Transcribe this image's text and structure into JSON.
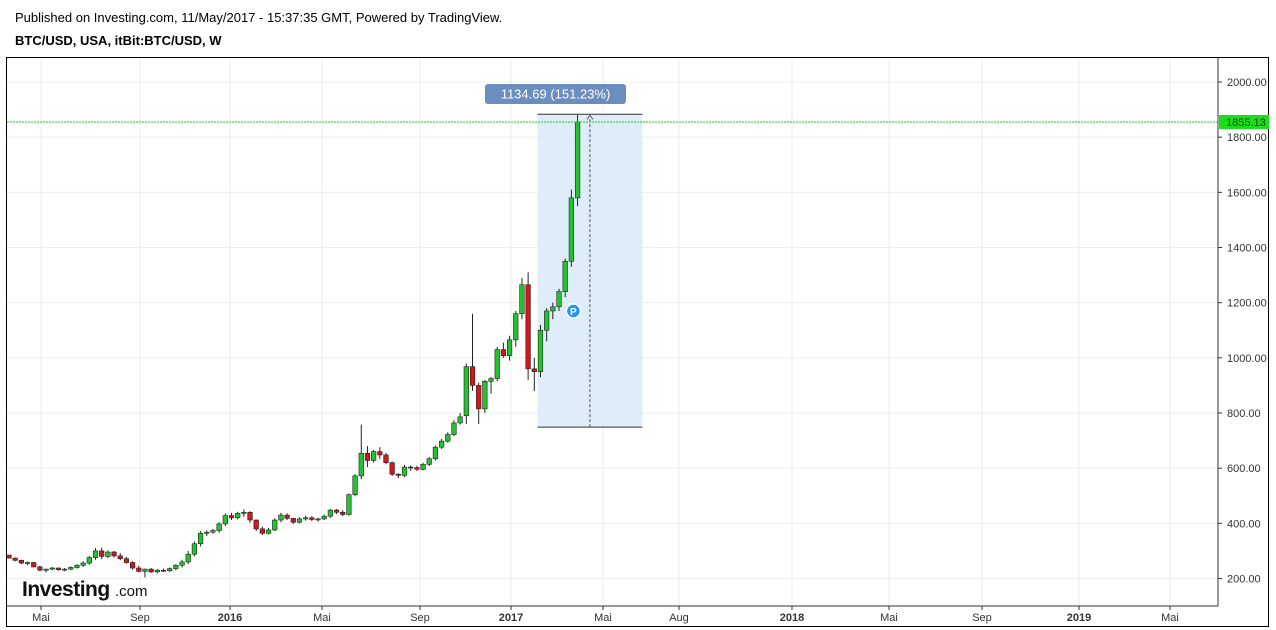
{
  "header": {
    "published": "Published on Investing.com, 11/May/2017 - 15:37:35 GMT, Powered by TradingView.",
    "symbol": "BTC/USD, USA, itBit:BTC/USD, W"
  },
  "chart_data": {
    "type": "candlestick",
    "y_axis": {
      "range": [
        100,
        2150
      ],
      "ticks": [
        "2000.00",
        "1800.00",
        "1600.00",
        "1400.00",
        "1200.00",
        "1000.00",
        "800.00",
        "600.00",
        "400.00",
        "200.00"
      ],
      "position": "right"
    },
    "x_axis": {
      "labels": [
        "Mai",
        "Sep",
        "2016",
        "Mai",
        "Sep",
        "2017",
        "Mai",
        "Aug",
        "2018",
        "Mai",
        "Sep",
        "2019",
        "Mai"
      ],
      "bold_labels": [
        "2016",
        "2017",
        "2018",
        "2019"
      ]
    },
    "last_price": "1855.13",
    "measure_label": "1134.69 (151.23%)",
    "measure_range": [
      749,
      1883
    ],
    "grid": true,
    "colors": {
      "up": "#22c42e",
      "down": "#d6141c",
      "measure_fill": "#dceaf9",
      "measure_badge": "#6c8ebf",
      "last_price_line": "#1ec81e"
    },
    "marker": "P",
    "candles": [
      [
        285,
        285,
        272,
        274
      ],
      [
        274,
        276,
        262,
        266
      ],
      [
        266,
        268,
        252,
        256
      ],
      [
        256,
        262,
        248,
        258
      ],
      [
        258,
        260,
        240,
        242
      ],
      [
        242,
        246,
        226,
        230
      ],
      [
        230,
        236,
        222,
        234
      ],
      [
        234,
        242,
        230,
        238
      ],
      [
        238,
        240,
        228,
        232
      ],
      [
        232,
        238,
        226,
        234
      ],
      [
        234,
        244,
        230,
        240
      ],
      [
        240,
        252,
        236,
        248
      ],
      [
        248,
        262,
        242,
        256
      ],
      [
        256,
        282,
        250,
        276
      ],
      [
        276,
        310,
        268,
        300
      ],
      [
        300,
        312,
        270,
        280
      ],
      [
        280,
        302,
        274,
        296
      ],
      [
        296,
        300,
        276,
        282
      ],
      [
        282,
        292,
        266,
        272
      ],
      [
        272,
        278,
        254,
        258
      ],
      [
        258,
        262,
        232,
        238
      ],
      [
        238,
        246,
        222,
        226
      ],
      [
        226,
        236,
        204,
        234
      ],
      [
        234,
        238,
        220,
        224
      ],
      [
        224,
        234,
        218,
        230
      ],
      [
        230,
        236,
        224,
        228
      ],
      [
        228,
        240,
        224,
        236
      ],
      [
        236,
        252,
        230,
        248
      ],
      [
        248,
        268,
        240,
        260
      ],
      [
        260,
        300,
        252,
        288
      ],
      [
        288,
        334,
        280,
        326
      ],
      [
        326,
        372,
        316,
        364
      ],
      [
        364,
        374,
        354,
        368
      ],
      [
        368,
        380,
        362,
        374
      ],
      [
        374,
        404,
        366,
        398
      ],
      [
        398,
        436,
        390,
        428
      ],
      [
        428,
        438,
        412,
        420
      ],
      [
        420,
        442,
        414,
        436
      ],
      [
        436,
        450,
        424,
        440
      ],
      [
        440,
        444,
        402,
        412
      ],
      [
        412,
        414,
        372,
        380
      ],
      [
        380,
        388,
        358,
        364
      ],
      [
        364,
        384,
        360,
        376
      ],
      [
        376,
        418,
        372,
        412
      ],
      [
        412,
        438,
        404,
        430
      ],
      [
        430,
        436,
        412,
        418
      ],
      [
        418,
        420,
        398,
        404
      ],
      [
        404,
        422,
        400,
        416
      ],
      [
        416,
        428,
        410,
        420
      ],
      [
        420,
        426,
        408,
        414
      ],
      [
        414,
        420,
        406,
        416
      ],
      [
        416,
        432,
        412,
        426
      ],
      [
        426,
        452,
        420,
        448
      ],
      [
        448,
        452,
        434,
        440
      ],
      [
        440,
        448,
        426,
        432
      ],
      [
        432,
        508,
        428,
        504
      ],
      [
        504,
        578,
        498,
        572
      ],
      [
        572,
        758,
        560,
        654
      ],
      [
        654,
        680,
        604,
        628
      ],
      [
        628,
        666,
        620,
        660
      ],
      [
        660,
        676,
        634,
        648
      ],
      [
        648,
        656,
        614,
        620
      ],
      [
        620,
        624,
        572,
        578
      ],
      [
        578,
        582,
        564,
        574
      ],
      [
        574,
        612,
        568,
        604
      ],
      [
        604,
        610,
        590,
        602
      ],
      [
        602,
        608,
        590,
        596
      ],
      [
        596,
        620,
        592,
        614
      ],
      [
        614,
        640,
        608,
        634
      ],
      [
        634,
        682,
        628,
        676
      ],
      [
        676,
        706,
        670,
        698
      ],
      [
        698,
        730,
        692,
        722
      ],
      [
        722,
        774,
        716,
        764
      ],
      [
        764,
        800,
        758,
        786
      ],
      [
        790,
        980,
        760,
        968
      ],
      [
        968,
        1160,
        880,
        900
      ],
      [
        900,
        910,
        760,
        815
      ],
      [
        815,
        920,
        800,
        915
      ],
      [
        915,
        930,
        870,
        925
      ],
      [
        925,
        1040,
        915,
        1030
      ],
      [
        1030,
        1055,
        1000,
        1008
      ],
      [
        1008,
        1080,
        990,
        1065
      ],
      [
        1065,
        1170,
        1040,
        1160
      ],
      [
        1160,
        1290,
        1140,
        1265
      ],
      [
        1265,
        1310,
        920,
        960
      ],
      [
        960,
        1000,
        880,
        950
      ],
      [
        950,
        1120,
        930,
        1100
      ],
      [
        1100,
        1180,
        1060,
        1170
      ],
      [
        1170,
        1200,
        1140,
        1185
      ],
      [
        1185,
        1250,
        1170,
        1240
      ],
      [
        1240,
        1360,
        1220,
        1350
      ],
      [
        1350,
        1610,
        1330,
        1580
      ],
      [
        1580,
        1880,
        1550,
        1855
      ]
    ]
  }
}
